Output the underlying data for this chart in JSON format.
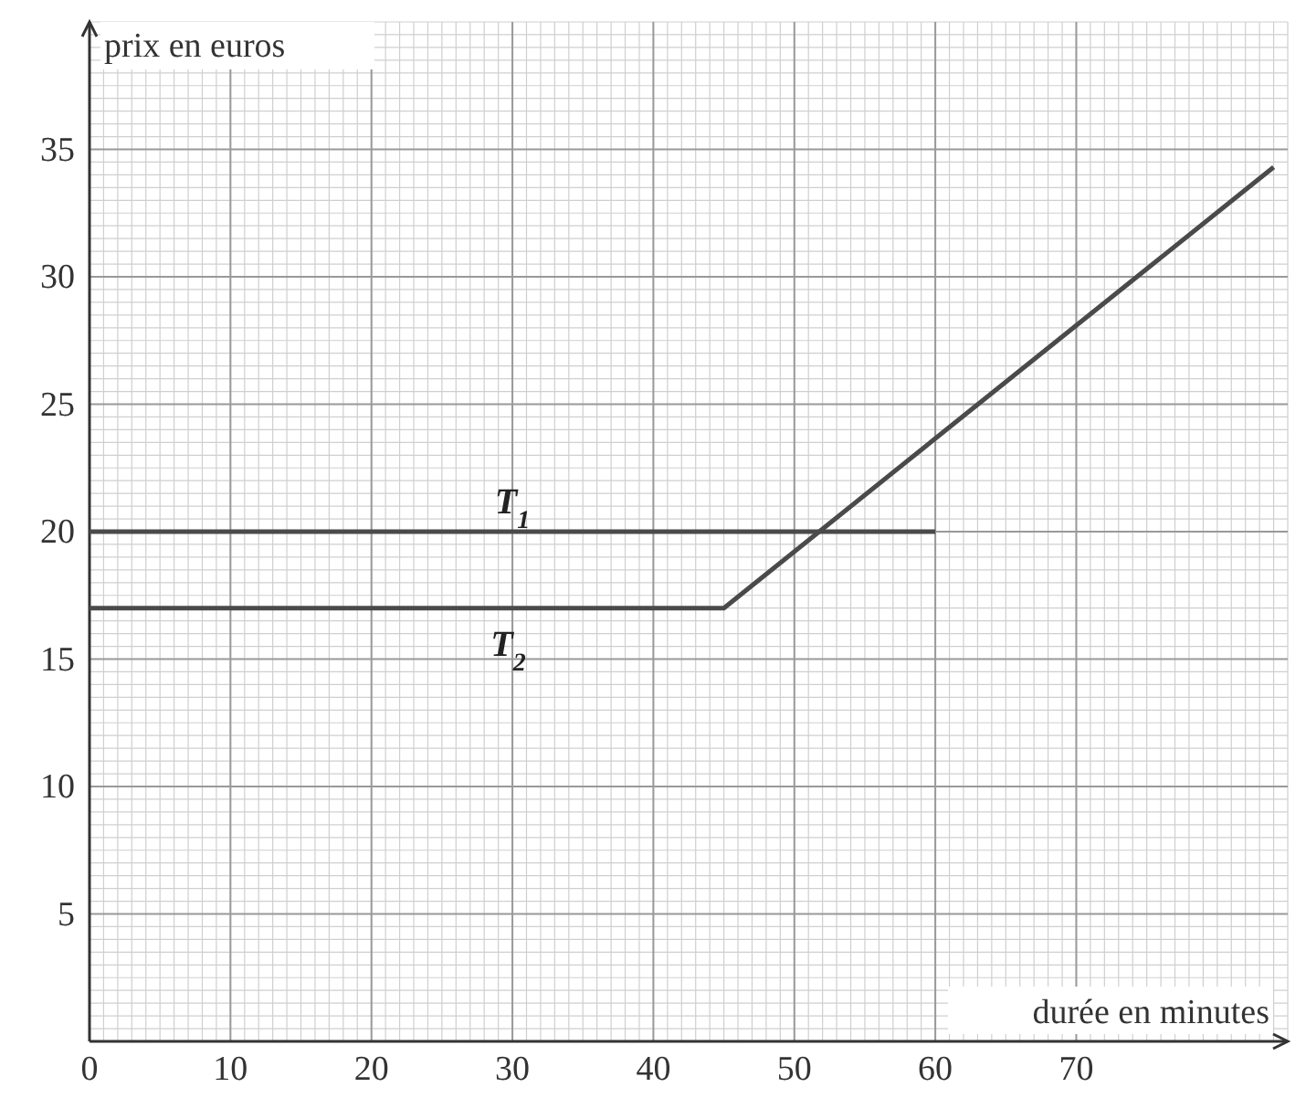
{
  "chart_data": {
    "type": "line",
    "xlabel": "durée en minutes",
    "ylabel": "prix en euros",
    "xlim": [
      0,
      85
    ],
    "ylim": [
      0,
      40
    ],
    "xticks": [
      0,
      10,
      20,
      30,
      40,
      50,
      60,
      70
    ],
    "yticks": [
      5,
      10,
      15,
      20,
      25,
      30,
      35
    ],
    "grid": true,
    "line_style": "solid",
    "series": [
      {
        "name": "T$_{1}$",
        "color": "#4a4a4a",
        "x": [
          0,
          60
        ],
        "values": [
          20,
          20
        ]
      },
      {
        "name": "T$_{2}$",
        "color": "#4a4a4a",
        "x": [
          0,
          45,
          84
        ],
        "values": [
          17,
          17,
          34.3
        ]
      }
    ]
  }
}
